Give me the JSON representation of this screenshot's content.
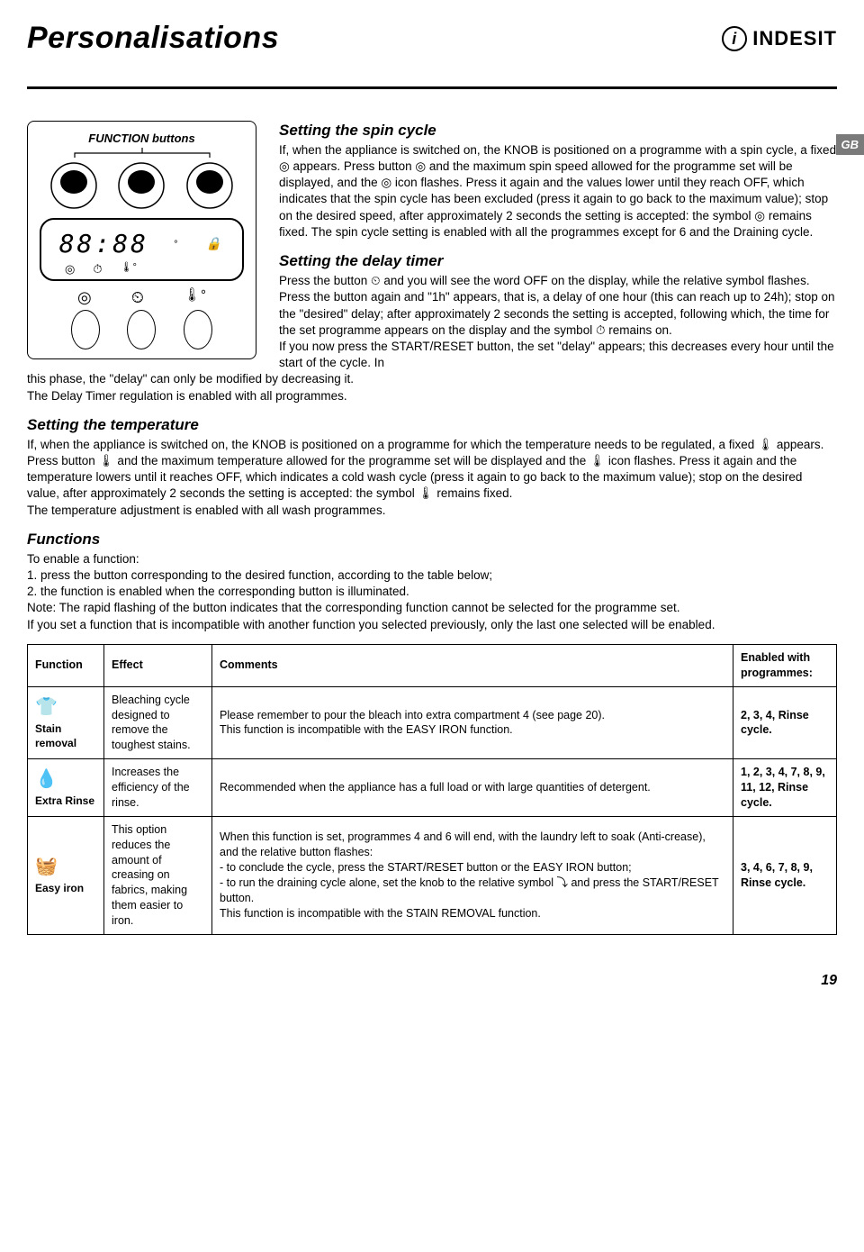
{
  "page": {
    "title": "Personalisations",
    "logo_text": "INDESIT",
    "language_tab": "GB",
    "page_number": "19"
  },
  "control_panel": {
    "buttons_label": "FUNCTION buttons",
    "display_value": "88:88",
    "lock_glyph": "🔒",
    "small_icons": [
      "◎",
      "⏱"
    ],
    "row_icons": [
      "◎",
      "⏲",
      "🌡"
    ]
  },
  "sections": {
    "spin": {
      "heading": "Setting the spin cycle",
      "body": "If, when the appliance is switched on, the KNOB is positioned on a programme with a spin cycle, a fixed ◎ appears. Press button ◎ and the maximum spin speed allowed for the programme set will be displayed, and the ◎ icon flashes. Press it again and the values lower until they reach OFF, which indicates that the spin cycle has been excluded (press it again to go back to the maximum value); stop on the desired speed, after approximately 2 seconds the setting is accepted: the symbol ◎ remains fixed. The spin cycle setting is enabled with all the programmes except for 6 and the Draining cycle."
    },
    "delay": {
      "heading": "Setting the delay timer",
      "body_top": "Press the button ⏲ and you will see the word OFF on the display, while the relative symbol flashes.\nPress the button again and \"1h\" appears, that is, a delay of one hour (this can reach up to 24h); stop on the \"desired\" delay; after approximately 2 seconds the setting is accepted, following which, the time for the set programme appears on the display and the symbol ⏱ remains on.\nIf you now press the START/RESET button, the set \"delay\" appears; this decreases every hour until the start of the cycle. In",
      "body_bottom": "this phase, the \"delay\" can only be modified by decreasing it.\nThe Delay Timer regulation is enabled with all programmes."
    },
    "temp": {
      "heading": "Setting the temperature",
      "body": "If, when the appliance is switched on, the KNOB is positioned on a programme for which the temperature needs to be regulated, a fixed 🌡 appears. Press button 🌡 and the maximum temperature allowed for the programme set will be displayed and the 🌡 icon flashes. Press it again and the temperature lowers until it reaches OFF, which indicates a cold wash cycle (press it again to go back to the maximum value); stop on the desired value, after approximately 2 seconds the setting is accepted: the symbol 🌡 remains fixed.\nThe temperature adjustment is enabled with all wash programmes."
    },
    "functions": {
      "heading": "Functions",
      "intro": "To enable a function:\n1. press the button corresponding to the desired function, according to the table below;\n2. the function is enabled when the corresponding button is illuminated.\nNote: The rapid flashing of the button indicates that the corresponding function cannot be selected for the programme set.\nIf you set a function that is incompatible with another function you selected previously, only the last one selected will be enabled."
    }
  },
  "table": {
    "columns": [
      "Function",
      "Effect",
      "Comments",
      "Enabled with programmes:"
    ],
    "col_widths": [
      "85px",
      "120px",
      "auto",
      "115px"
    ],
    "rows": [
      {
        "icon": "👕",
        "name": "Stain removal",
        "effect": "Bleaching cycle designed to remove the toughest stains.",
        "comments": "Please remember to pour the bleach into extra compartment 4 (see page 20).\nThis function is incompatible with the EASY IRON function.",
        "enabled": "2, 3, 4, Rinse cycle."
      },
      {
        "icon": "💧",
        "name": "Extra Rinse",
        "effect": "Increases the efficiency of the rinse.",
        "comments": "Recommended when the appliance has a full load or with large quantities of detergent.",
        "enabled": "1, 2, 3, 4, 7, 8, 9, 11, 12, Rinse cycle."
      },
      {
        "icon": "🧺",
        "name": "Easy iron",
        "effect": "This option reduces the amount of creasing on fabrics, making them easier to iron.",
        "comments": "When this function is set, programmes 4 and 6 will end, with the laundry left to soak (Anti-crease), and the relative button flashes:\n- to conclude the cycle, press the START/RESET button or the EASY IRON button;\n- to run the draining cycle alone, set the knob to the relative symbol ⤵ and press the START/RESET button.\nThis function is incompatible with the STAIN REMOVAL function.",
        "enabled": "3, 4, 6, 7, 8, 9, Rinse cycle."
      }
    ]
  },
  "styling": {
    "title_fontsize": 34,
    "body_fontsize": 13.5,
    "table_fontsize": 12.5,
    "section_head_fontsize": 17,
    "gb_bg": "#7a7a7a",
    "gb_fg": "#ffffff"
  }
}
